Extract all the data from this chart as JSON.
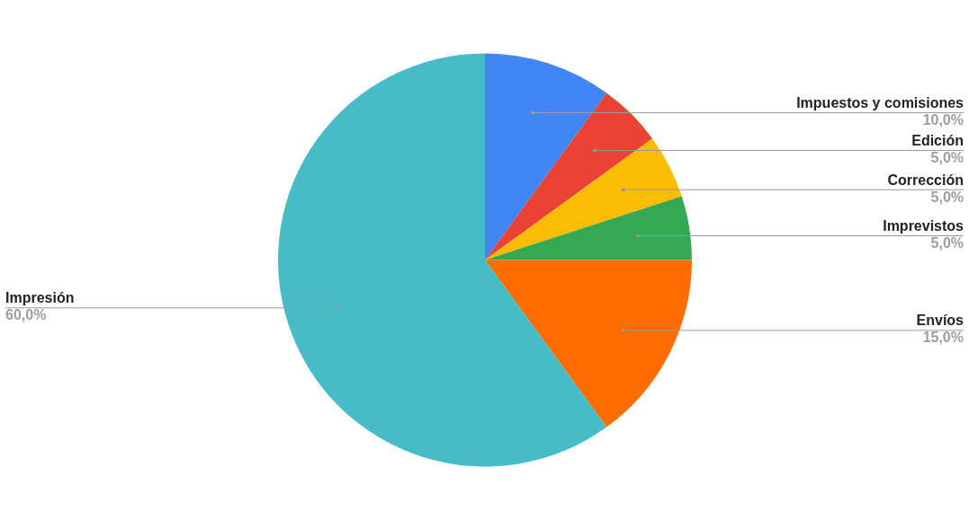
{
  "chart_data": {
    "type": "pie",
    "categories": [
      "Impuestos y comisiones",
      "Edición",
      "Corrección",
      "Imprevistos",
      "Envíos",
      "Impresión"
    ],
    "values": [
      10,
      5,
      5,
      5,
      15,
      60
    ],
    "colors": [
      "#4285f4",
      "#ea4335",
      "#fbbc04",
      "#34a853",
      "#ff6d01",
      "#46bdc6"
    ],
    "value_labels": [
      "10,0%",
      "5,0%",
      "5,0%",
      "5,0%",
      "15,0%",
      "60,0%"
    ],
    "legend": false
  }
}
